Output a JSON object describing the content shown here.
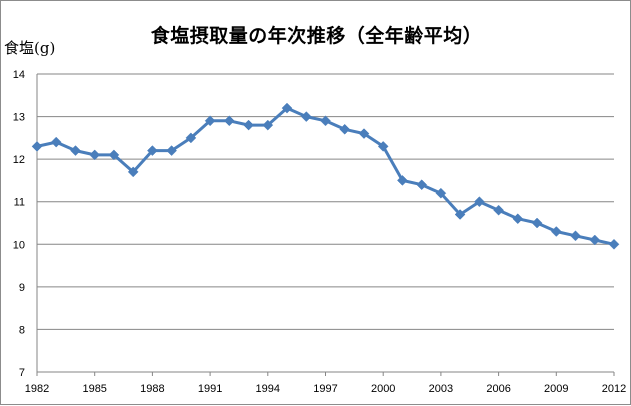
{
  "chart_data": {
    "type": "line",
    "title": "食塩摂取量の年次推移（全年齢平均）",
    "xlabel": "",
    "ylabel": "食塩(g)",
    "ylim": [
      7,
      14
    ],
    "yticks": [
      "7",
      "8",
      "9",
      "10",
      "11",
      "12",
      "13",
      "14"
    ],
    "xlim": [
      1982,
      2012
    ],
    "xticks": [
      "1982",
      "1985",
      "1988",
      "1991",
      "1994",
      "1997",
      "2000",
      "2003",
      "2006",
      "2009",
      "2012"
    ],
    "grid": "horizontal",
    "legend": "none",
    "series": [
      {
        "color": "#4a7ebb",
        "marker": "diamond",
        "x": [
          1982,
          1983,
          1984,
          1985,
          1986,
          1987,
          1988,
          1989,
          1990,
          1991,
          1992,
          1993,
          1994,
          1995,
          1996,
          1997,
          1998,
          1999,
          2000,
          2001,
          2002,
          2003,
          2004,
          2005,
          2006,
          2007,
          2008,
          2009,
          2010,
          2011,
          2012
        ],
        "values": [
          12.3,
          12.4,
          12.2,
          12.1,
          12.1,
          11.7,
          12.2,
          12.2,
          12.5,
          12.9,
          12.9,
          12.8,
          12.8,
          13.2,
          13.0,
          12.9,
          12.7,
          12.6,
          12.3,
          11.5,
          11.4,
          11.2,
          10.7,
          11.0,
          10.8,
          10.6,
          10.5,
          10.3,
          10.2,
          10.1,
          10.0
        ]
      }
    ]
  }
}
